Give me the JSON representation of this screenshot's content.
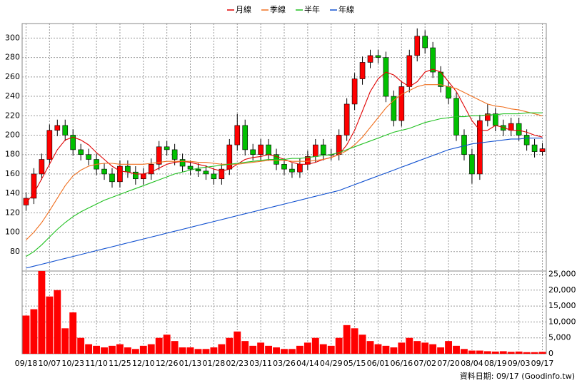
{
  "chart_data": {
    "type": "candlestick",
    "categories": [
      "09/18",
      null,
      null,
      "10/07",
      null,
      null,
      "10/23",
      null,
      null,
      "11/10",
      null,
      null,
      "11/25",
      null,
      null,
      "12/10",
      null,
      null,
      "12/26",
      null,
      null,
      "01/13",
      null,
      null,
      "01/28",
      null,
      null,
      "02/23",
      null,
      null,
      "03/11",
      null,
      null,
      "03/26",
      null,
      null,
      "04/14",
      null,
      null,
      "04/29",
      null,
      null,
      "05/15",
      null,
      null,
      "06/01",
      null,
      null,
      "06/16",
      null,
      null,
      "07/02",
      null,
      null,
      "07/20",
      null,
      null,
      "08/04",
      null,
      null,
      "08/19",
      null,
      null,
      "09/03",
      null,
      null,
      "09/17"
    ],
    "open": [
      128,
      135,
      160,
      175,
      205,
      210,
      200,
      185,
      180,
      175,
      165,
      160,
      152,
      168,
      162,
      155,
      160,
      170,
      188,
      185,
      175,
      168,
      165,
      163,
      160,
      155,
      165,
      190,
      210,
      185,
      180,
      190,
      180,
      170,
      165,
      162,
      170,
      178,
      190,
      180,
      180,
      200,
      232,
      258,
      275,
      282,
      280,
      240,
      215,
      250,
      282,
      302,
      290,
      265,
      250,
      238,
      200,
      180,
      160,
      215,
      222,
      210,
      205,
      212,
      200,
      190,
      183
    ],
    "high": [
      141,
      166,
      181,
      211,
      216,
      216,
      206,
      191,
      186,
      181,
      171,
      166,
      174,
      174,
      168,
      166,
      176,
      194,
      194,
      191,
      181,
      174,
      171,
      169,
      166,
      171,
      196,
      222,
      216,
      191,
      196,
      196,
      186,
      176,
      171,
      176,
      184,
      196,
      196,
      186,
      206,
      238,
      264,
      281,
      288,
      288,
      286,
      246,
      256,
      288,
      310,
      308,
      296,
      271,
      256,
      244,
      206,
      186,
      221,
      232,
      228,
      216,
      218,
      218,
      206,
      196,
      192
    ],
    "low": [
      122,
      129,
      154,
      169,
      199,
      194,
      179,
      174,
      169,
      159,
      154,
      146,
      146,
      156,
      149,
      149,
      154,
      164,
      179,
      169,
      162,
      159,
      157,
      154,
      149,
      149,
      159,
      184,
      179,
      174,
      174,
      174,
      164,
      159,
      156,
      156,
      164,
      172,
      174,
      174,
      174,
      194,
      226,
      252,
      269,
      274,
      234,
      209,
      209,
      244,
      276,
      284,
      259,
      244,
      232,
      194,
      174,
      150,
      154,
      209,
      204,
      199,
      199,
      194,
      184,
      177,
      179
    ],
    "close": [
      135,
      160,
      175,
      205,
      210,
      200,
      185,
      180,
      175,
      165,
      160,
      152,
      168,
      162,
      155,
      160,
      170,
      188,
      185,
      175,
      168,
      165,
      163,
      160,
      155,
      165,
      190,
      210,
      185,
      180,
      190,
      180,
      170,
      165,
      162,
      170,
      178,
      190,
      180,
      180,
      200,
      232,
      258,
      275,
      282,
      280,
      240,
      215,
      250,
      282,
      302,
      290,
      265,
      250,
      238,
      200,
      180,
      160,
      215,
      222,
      210,
      205,
      212,
      200,
      190,
      183,
      186
    ],
    "up_color": "#ff0000",
    "down_color": "#00c000",
    "ylim": [
      60,
      315
    ],
    "yticks": [
      80,
      100,
      120,
      140,
      160,
      180,
      200,
      220,
      240,
      260,
      280,
      300
    ],
    "grid": true,
    "series": [
      {
        "name": "月線",
        "color": "#e00000",
        "values": [
          130,
          140,
          155,
          170,
          185,
          195,
          198,
          195,
          190,
          182,
          175,
          168,
          163,
          162,
          160,
          160,
          162,
          166,
          170,
          172,
          173,
          172,
          170,
          168,
          165,
          163,
          165,
          170,
          175,
          177,
          178,
          180,
          178,
          175,
          172,
          170,
          170,
          172,
          175,
          177,
          180,
          190,
          205,
          225,
          245,
          258,
          265,
          262,
          255,
          250,
          255,
          265,
          268,
          265,
          255,
          245,
          230,
          215,
          205,
          205,
          210,
          208,
          205,
          205,
          203,
          200,
          198
        ]
      },
      {
        "name": "季線",
        "color": "#f07020",
        "values": [
          92,
          100,
          110,
          122,
          135,
          148,
          158,
          164,
          168,
          170,
          171,
          171,
          170,
          170,
          170,
          170,
          171,
          172,
          173,
          173,
          173,
          173,
          172,
          172,
          171,
          170,
          170,
          170,
          171,
          172,
          173,
          174,
          174,
          174,
          173,
          173,
          173,
          174,
          175,
          177,
          180,
          184,
          190,
          198,
          208,
          218,
          228,
          236,
          242,
          246,
          250,
          252,
          252,
          252,
          250,
          248,
          244,
          240,
          236,
          232,
          230,
          229,
          227,
          226,
          224,
          222,
          220
        ]
      },
      {
        "name": "半年",
        "color": "#20c020",
        "values": [
          75,
          80,
          87,
          95,
          103,
          110,
          116,
          121,
          125,
          129,
          133,
          136,
          139,
          142,
          145,
          148,
          151,
          154,
          157,
          160,
          162,
          164,
          166,
          167,
          168,
          169,
          170,
          171,
          172,
          173,
          174,
          175,
          175,
          175,
          176,
          176,
          177,
          178,
          179,
          180,
          182,
          185,
          188,
          191,
          194,
          197,
          200,
          203,
          205,
          207,
          210,
          213,
          215,
          217,
          218,
          219,
          219,
          220,
          220,
          221,
          221,
          222,
          222,
          222,
          223,
          223,
          223
        ]
      },
      {
        "name": "年線",
        "color": "#1050d0",
        "values": [
          63,
          65,
          67,
          69,
          71,
          73,
          75,
          77,
          79,
          81,
          83,
          85,
          87,
          89,
          91,
          93,
          95,
          97,
          99,
          101,
          103,
          105,
          107,
          109,
          111,
          113,
          115,
          117,
          119,
          121,
          123,
          125,
          127,
          129,
          131,
          133,
          135,
          137,
          139,
          141,
          143,
          146,
          149,
          152,
          155,
          158,
          161,
          164,
          167,
          170,
          173,
          176,
          179,
          182,
          185,
          187,
          189,
          191,
          192,
          193,
          194,
          195,
          196,
          196,
          197,
          197,
          197
        ]
      }
    ],
    "volume": {
      "type": "bar",
      "color": "#ff0000",
      "values": [
        12000,
        14000,
        26000,
        18000,
        20000,
        8000,
        13000,
        5000,
        3000,
        2500,
        2000,
        2500,
        3000,
        2000,
        1500,
        2500,
        3000,
        5000,
        6000,
        4000,
        2000,
        2000,
        1500,
        1500,
        2000,
        3000,
        5000,
        7000,
        4000,
        2500,
        3500,
        2500,
        2000,
        1500,
        1500,
        2500,
        3500,
        5000,
        3000,
        2500,
        5000,
        9000,
        8000,
        6000,
        4000,
        3000,
        2500,
        2000,
        3500,
        5000,
        4000,
        3500,
        3000,
        2000,
        4000,
        2500,
        1500,
        1000,
        1000,
        800,
        700,
        800,
        600,
        700,
        500,
        500,
        600
      ],
      "ylim": [
        0,
        26000
      ],
      "yticks": [
        0,
        {
          "value": 5000,
          "label": "5,000"
        },
        {
          "value": 10000,
          "label": "10,000"
        },
        {
          "value": 15000,
          "label": "15,000"
        },
        {
          "value": 20000,
          "label": "20,000"
        },
        {
          "value": 25000,
          "label": "25,000"
        }
      ]
    },
    "footnote": "資料日期: 09/17  (Goodinfo.tw)"
  }
}
